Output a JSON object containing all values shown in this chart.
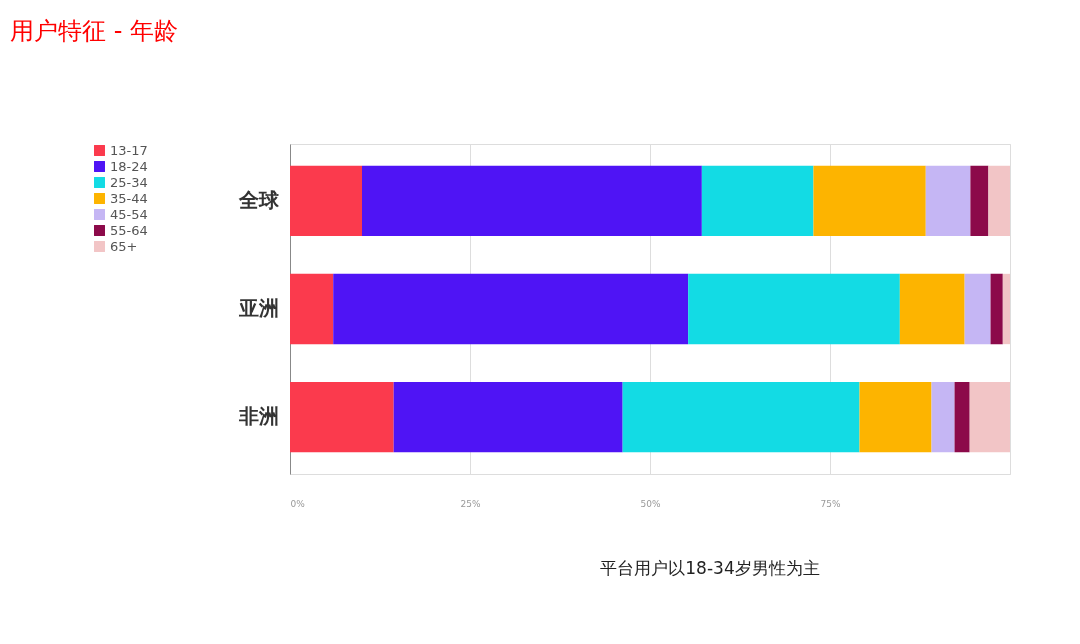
{
  "chart_data": {
    "type": "bar",
    "orientation": "horizontal",
    "stacked": true,
    "title": "用户特征 - 年龄",
    "categories": [
      "全球",
      "亚洲",
      "非洲"
    ],
    "series": [
      {
        "name": "13-17",
        "color": "#fb3a4d",
        "values": [
          10.0,
          6.0,
          14.4
        ]
      },
      {
        "name": "18-24",
        "color": "#4f14f5",
        "values": [
          47.2,
          49.3,
          31.8
        ]
      },
      {
        "name": "25-34",
        "color": "#13dbe4",
        "values": [
          15.5,
          29.4,
          32.9
        ]
      },
      {
        "name": "35-44",
        "color": "#fdb400",
        "values": [
          15.6,
          9.0,
          10.0
        ]
      },
      {
        "name": "45-54",
        "color": "#c5b6f4",
        "values": [
          6.2,
          3.6,
          3.2
        ]
      },
      {
        "name": "55-64",
        "color": "#8c0a4a",
        "values": [
          2.5,
          1.7,
          2.1
        ]
      },
      {
        "name": "65+",
        "color": "#f2c5c6",
        "values": [
          3.0,
          1.0,
          5.6
        ]
      }
    ],
    "xlim": [
      0,
      100
    ],
    "xticks": [
      {
        "value": 0,
        "label": "0%"
      },
      {
        "value": 25,
        "label": "25%"
      },
      {
        "value": 50,
        "label": "50%"
      },
      {
        "value": 75,
        "label": "75%"
      },
      {
        "value": 100,
        "label": null
      }
    ],
    "grid": "x",
    "legend": "left",
    "annotations": [
      "平台用户以18-34岁男性为主"
    ]
  }
}
